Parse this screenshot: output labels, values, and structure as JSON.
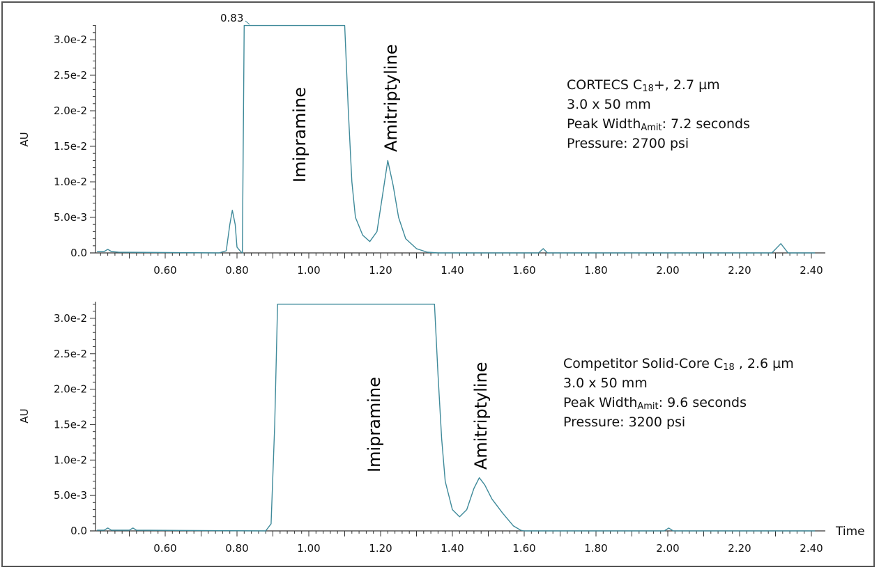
{
  "chart_data": [
    {
      "type": "line",
      "title": "",
      "xlabel": "",
      "ylabel": "AU",
      "xlim": [
        0.41,
        2.42
      ],
      "ylim": [
        0.0,
        0.032
      ],
      "x_ticks": [
        "0.60",
        "0.80",
        "1.00",
        "1.20",
        "1.40",
        "1.60",
        "1.80",
        "2.00",
        "2.20",
        "2.40"
      ],
      "y_ticks": [
        "0.0",
        "5.0e-3",
        "1.0e-2",
        "1.5e-2",
        "2.0e-2",
        "2.5e-2",
        "3.0e-2"
      ],
      "annotations": [
        {
          "text": "0.83",
          "x": 0.83,
          "y": 0.032
        },
        {
          "text": "Imipramine",
          "x": 0.96,
          "orientation": "vertical"
        },
        {
          "text": "Amitriptyline",
          "x": 1.22,
          "orientation": "vertical"
        }
      ],
      "info": {
        "column_prefix": "CORTECS C",
        "column_sub": "18",
        "column_suffix": "+, 2.7 µm",
        "dimensions": "3.0 x 50 mm",
        "peak_width_prefix": "Peak Width",
        "peak_width_sub": "Amit",
        "peak_width_suffix": ": 7.2 seconds",
        "pressure": "Pressure: 2700 psi"
      },
      "series": [
        {
          "name": "CORTECS C18+",
          "color": "#3f8a9a",
          "points": [
            [
              0.41,
              0.0002
            ],
            [
              0.43,
              0.0002
            ],
            [
              0.44,
              0.0005
            ],
            [
              0.45,
              0.0002
            ],
            [
              0.47,
              0.0001
            ],
            [
              0.75,
              0.0
            ],
            [
              0.77,
              0.0003
            ],
            [
              0.78,
              0.004
            ],
            [
              0.787,
              0.006
            ],
            [
              0.795,
              0.004
            ],
            [
              0.8,
              0.0008
            ],
            [
              0.81,
              0.0002
            ],
            [
              0.815,
              0.0
            ],
            [
              0.82,
              0.032
            ],
            [
              0.83,
              0.032
            ],
            [
              1.1,
              0.032
            ],
            [
              1.11,
              0.02
            ],
            [
              1.12,
              0.01
            ],
            [
              1.13,
              0.005
            ],
            [
              1.15,
              0.0025
            ],
            [
              1.17,
              0.0016
            ],
            [
              1.19,
              0.003
            ],
            [
              1.205,
              0.008
            ],
            [
              1.22,
              0.013
            ],
            [
              1.235,
              0.0095
            ],
            [
              1.25,
              0.005
            ],
            [
              1.27,
              0.002
            ],
            [
              1.3,
              0.0006
            ],
            [
              1.33,
              0.0001
            ],
            [
              1.36,
              0.0
            ],
            [
              1.64,
              0.0
            ],
            [
              1.653,
              0.0006
            ],
            [
              1.665,
              0.0
            ],
            [
              2.29,
              0.0
            ],
            [
              2.315,
              0.0013
            ],
            [
              2.335,
              0.0
            ],
            [
              2.41,
              0.0
            ]
          ]
        }
      ]
    },
    {
      "type": "line",
      "title": "",
      "xlabel": "Time",
      "ylabel": "AU",
      "xlim": [
        0.41,
        2.42
      ],
      "ylim": [
        0.0,
        0.032
      ],
      "x_ticks": [
        "0.60",
        "0.80",
        "1.00",
        "1.20",
        "1.40",
        "1.60",
        "1.80",
        "2.00",
        "2.20",
        "2.40"
      ],
      "y_ticks": [
        "0.0",
        "5.0e-3",
        "1.0e-2",
        "1.5e-2",
        "2.0e-2",
        "2.5e-2",
        "3.0e-2"
      ],
      "annotations": [
        {
          "text": "Imipramine",
          "x": 1.17,
          "orientation": "vertical"
        },
        {
          "text": "Amitriptyline",
          "x": 1.46,
          "orientation": "vertical"
        }
      ],
      "info": {
        "column_prefix": "Competitor Solid-Core C",
        "column_sub": "18",
        "column_suffix": " , 2.6 µm",
        "dimensions": "3.0 x 50 mm",
        "peak_width_prefix": "Peak Width",
        "peak_width_sub": "Amit",
        "peak_width_suffix": ":  9.6 seconds",
        "pressure": "Pressure: 3200 psi"
      },
      "series": [
        {
          "name": "Competitor Solid-Core C18",
          "color": "#3f8a9a",
          "points": [
            [
              0.41,
              0.0001
            ],
            [
              0.43,
              0.0001
            ],
            [
              0.44,
              0.0004
            ],
            [
              0.45,
              0.0001
            ],
            [
              0.5,
              0.0001
            ],
            [
              0.51,
              0.0004
            ],
            [
              0.52,
              0.0001
            ],
            [
              0.88,
              0.0
            ],
            [
              0.895,
              0.001
            ],
            [
              0.905,
              0.015
            ],
            [
              0.913,
              0.032
            ],
            [
              1.35,
              0.032
            ],
            [
              1.36,
              0.022
            ],
            [
              1.37,
              0.013
            ],
            [
              1.38,
              0.007
            ],
            [
              1.4,
              0.003
            ],
            [
              1.42,
              0.002
            ],
            [
              1.44,
              0.003
            ],
            [
              1.46,
              0.006
            ],
            [
              1.475,
              0.0075
            ],
            [
              1.49,
              0.0065
            ],
            [
              1.51,
              0.0045
            ],
            [
              1.54,
              0.0025
            ],
            [
              1.57,
              0.0007
            ],
            [
              1.59,
              0.0001
            ],
            [
              1.6,
              0.0
            ],
            [
              1.99,
              0.0
            ],
            [
              2.003,
              0.0004
            ],
            [
              2.015,
              0.0
            ],
            [
              2.41,
              0.0
            ]
          ]
        }
      ]
    }
  ],
  "labels": {
    "top_peak_time": "0.83",
    "top_imipramine": "Imipramine",
    "top_amitriptyline": "Amitriptyline",
    "bottom_imipramine": "Imipramine",
    "bottom_amitriptyline": "Amitriptyline",
    "y_axis_title": "AU",
    "x_axis_title": "Time"
  },
  "top_info": {
    "column_prefix": "CORTECS C",
    "column_sub": "18",
    "column_suffix": "+, 2.7 µm",
    "dimensions": "3.0 x 50 mm",
    "peak_width_prefix": "Peak Width",
    "peak_width_sub": "Amit",
    "peak_width_suffix": ": 7.2 seconds",
    "pressure": "Pressure: 2700 psi"
  },
  "bottom_info": {
    "column_prefix": "Competitor Solid-Core C",
    "column_sub": "18",
    "column_suffix": " , 2.6 µm",
    "dimensions": "3.0 x 50 mm",
    "peak_width_prefix": "Peak Width",
    "peak_width_sub": "Amit",
    "peak_width_suffix": ":  9.6 seconds",
    "pressure": "Pressure: 3200 psi"
  },
  "colors": {
    "trace": "#3f8a9a",
    "axis": "#333333",
    "text": "#111111",
    "frame": "#555555"
  }
}
